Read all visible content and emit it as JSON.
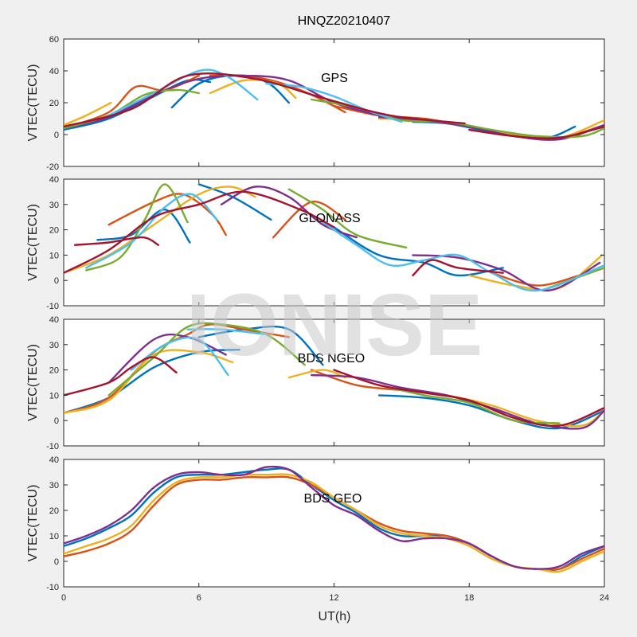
{
  "figure_title": "HNQZ20210407",
  "watermark": "IONISE",
  "colors": [
    "#0072BD",
    "#D95319",
    "#EDB120",
    "#7E2F8E",
    "#77AC30",
    "#4DBEEE",
    "#A2142F"
  ],
  "chart_data": [
    {
      "type": "line",
      "title": "HNQZ20210407",
      "annotation": "GPS",
      "xlabel": "",
      "ylabel": "VTEC(TECU)",
      "xlim": [
        0,
        24
      ],
      "ylim": [
        -20,
        60
      ],
      "xticks": [
        0,
        6,
        12,
        18,
        24
      ],
      "yticks": [
        -20,
        0,
        20,
        40,
        60
      ],
      "series": [
        {
          "color": "#0072BD",
          "x": [
            0,
            2,
            4,
            5.5,
            6.5
          ],
          "y": [
            3,
            10,
            24,
            34,
            33
          ]
        },
        {
          "color": "#0072BD",
          "x": [
            4.8,
            6,
            7.5,
            9,
            10
          ],
          "y": [
            17,
            32,
            37,
            33,
            20
          ]
        },
        {
          "color": "#0072BD",
          "x": [
            15.5,
            17,
            18.5,
            20,
            21.5,
            22.7
          ],
          "y": [
            8,
            7,
            3,
            -1,
            -2,
            5
          ]
        },
        {
          "color": "#D95319",
          "x": [
            0,
            2,
            3.2,
            4.5,
            6
          ],
          "y": [
            4,
            14,
            30,
            28,
            37
          ]
        },
        {
          "color": "#D95319",
          "x": [
            6.5,
            8,
            9.5,
            11,
            12.5
          ],
          "y": [
            37,
            37,
            33,
            25,
            14
          ]
        },
        {
          "color": "#D95319",
          "x": [
            12,
            14,
            16,
            18,
            20,
            22,
            24
          ],
          "y": [
            18,
            12,
            10,
            5,
            0,
            -2,
            6
          ]
        },
        {
          "color": "#EDB120",
          "x": [
            0,
            1,
            2.1
          ],
          "y": [
            6,
            12,
            20
          ]
        },
        {
          "color": "#EDB120",
          "x": [
            6.5,
            8,
            9.5,
            10.3
          ],
          "y": [
            26,
            34,
            32,
            23
          ]
        },
        {
          "color": "#EDB120",
          "x": [
            14,
            16,
            18,
            20,
            22,
            24
          ],
          "y": [
            10,
            9,
            5,
            0,
            -2,
            9
          ]
        },
        {
          "color": "#7E2F8E",
          "x": [
            0,
            2,
            4,
            6,
            8,
            10,
            12,
            14
          ],
          "y": [
            4,
            11,
            25,
            35,
            37,
            34,
            20,
            12
          ]
        },
        {
          "color": "#7E2F8E",
          "x": [
            14,
            16,
            18,
            20,
            22,
            24
          ],
          "y": [
            11,
            9,
            5,
            -1,
            -3,
            6
          ]
        },
        {
          "color": "#77AC30",
          "x": [
            0,
            2,
            3.6,
            5,
            6
          ],
          "y": [
            4,
            12,
            25,
            28,
            26
          ]
        },
        {
          "color": "#77AC30",
          "x": [
            11,
            13,
            15,
            17,
            19,
            21,
            23,
            24
          ],
          "y": [
            22,
            17,
            9,
            8,
            3,
            -1,
            -1,
            4
          ]
        },
        {
          "color": "#4DBEEE",
          "x": [
            2,
            4,
            6,
            7.2,
            8.6
          ],
          "y": [
            12,
            26,
            40,
            37,
            22
          ]
        },
        {
          "color": "#4DBEEE",
          "x": [
            9,
            10.5,
            12,
            13.5,
            15
          ],
          "y": [
            32,
            30,
            24,
            15,
            8
          ]
        },
        {
          "color": "#A2142F",
          "x": [
            0,
            3,
            5.5,
            8.5,
            11.5,
            14.5,
            17.8
          ],
          "y": [
            5,
            16,
            37,
            35,
            23,
            12,
            7
          ]
        },
        {
          "color": "#A2142F",
          "x": [
            18,
            20,
            22,
            24
          ],
          "y": [
            3,
            -1,
            -2,
            5
          ]
        }
      ]
    },
    {
      "type": "line",
      "annotation": "GLONASS",
      "xlabel": "",
      "ylabel": "VTEC(TECU)",
      "xlim": [
        0,
        24
      ],
      "ylim": [
        -10,
        40
      ],
      "xticks": [
        0,
        6,
        12,
        18,
        24
      ],
      "yticks": [
        -10,
        0,
        10,
        20,
        30,
        40
      ],
      "series": [
        {
          "color": "#0072BD",
          "x": [
            1.5,
            3,
            4.5,
            5.6
          ],
          "y": [
            16,
            18,
            28,
            15
          ]
        },
        {
          "color": "#0072BD",
          "x": [
            6,
            7.5,
            9.2
          ],
          "y": [
            38,
            33,
            24
          ]
        },
        {
          "color": "#0072BD",
          "x": [
            12,
            14,
            16,
            17.5,
            19.5
          ],
          "y": [
            21,
            10,
            7,
            2,
            5
          ]
        },
        {
          "color": "#D95319",
          "x": [
            2,
            4,
            5.3,
            6.6,
            7.2
          ],
          "y": [
            22,
            31,
            34,
            26,
            18
          ]
        },
        {
          "color": "#D95319",
          "x": [
            9.3,
            11,
            12.5
          ],
          "y": [
            17,
            31,
            24
          ]
        },
        {
          "color": "#D95319",
          "x": [
            19,
            21,
            22.9
          ],
          "y": [
            3,
            -2,
            2
          ]
        },
        {
          "color": "#EDB120",
          "x": [
            0,
            2,
            4,
            6,
            7.4,
            8.5
          ],
          "y": [
            3,
            10,
            22,
            34,
            37,
            33
          ]
        },
        {
          "color": "#EDB120",
          "x": [
            18,
            20,
            22,
            23.9
          ],
          "y": [
            2,
            -2,
            -3,
            10
          ]
        },
        {
          "color": "#7E2F8E",
          "x": [
            7,
            8.5,
            10,
            11.5,
            13
          ],
          "y": [
            30,
            37,
            33,
            22,
            17
          ]
        },
        {
          "color": "#7E2F8E",
          "x": [
            15.5,
            17.5,
            19.5,
            21.5,
            23.8
          ],
          "y": [
            10,
            9,
            4,
            -4,
            7
          ]
        },
        {
          "color": "#77AC30",
          "x": [
            1,
            2.5,
            3.6,
            4.5,
            5.5
          ],
          "y": [
            4,
            9,
            24,
            38,
            23
          ]
        },
        {
          "color": "#77AC30",
          "x": [
            10,
            11.5,
            13,
            15.2
          ],
          "y": [
            36,
            28,
            18,
            13
          ]
        },
        {
          "color": "#77AC30",
          "x": [
            21.5,
            24
          ],
          "y": [
            -3,
            5
          ]
        },
        {
          "color": "#4DBEEE",
          "x": [
            1,
            3,
            4.5,
            5.7,
            6.8
          ],
          "y": [
            5,
            15,
            29,
            34,
            24
          ]
        },
        {
          "color": "#4DBEEE",
          "x": [
            11.5,
            13,
            14.5,
            16,
            17.5,
            19,
            21,
            24
          ],
          "y": [
            23,
            14,
            6,
            8,
            10,
            3,
            -4,
            6
          ]
        },
        {
          "color": "#A2142F",
          "x": [
            0.5,
            2,
            3.5,
            4.2
          ],
          "y": [
            14,
            15,
            17,
            14
          ]
        },
        {
          "color": "#A2142F",
          "x": [
            0,
            2,
            4,
            6,
            8,
            10.5,
            12
          ],
          "y": [
            3,
            12,
            25,
            30,
            35,
            28,
            21
          ]
        },
        {
          "color": "#A2142F",
          "x": [
            15.5,
            16.3,
            17.5,
            19.5
          ],
          "y": [
            2,
            8,
            5,
            3
          ]
        }
      ]
    },
    {
      "type": "line",
      "annotation": "BDS NGEO",
      "xlabel": "",
      "ylabel": "VTEC(TECU)",
      "xlim": [
        0,
        24
      ],
      "ylim": [
        -10,
        40
      ],
      "xticks": [
        0,
        6,
        12,
        18,
        24
      ],
      "yticks": [
        -10,
        0,
        10,
        20,
        30,
        40
      ],
      "series": [
        {
          "color": "#0072BD",
          "x": [
            0,
            2,
            4,
            6,
            7.8
          ],
          "y": [
            3,
            9,
            21,
            27,
            28
          ]
        },
        {
          "color": "#0072BD",
          "x": [
            6,
            8,
            10,
            11.5
          ],
          "y": [
            33,
            36,
            36,
            22
          ]
        },
        {
          "color": "#0072BD",
          "x": [
            14,
            16,
            18,
            20,
            22,
            24
          ],
          "y": [
            10,
            9,
            6,
            0,
            -3,
            4
          ]
        },
        {
          "color": "#D95319",
          "x": [
            0,
            2,
            4,
            5.5,
            6.5,
            8,
            10
          ],
          "y": [
            3,
            9,
            27,
            34,
            38,
            36,
            33
          ]
        },
        {
          "color": "#D95319",
          "x": [
            11,
            13,
            15,
            17
          ],
          "y": [
            20,
            14,
            12,
            10
          ]
        },
        {
          "color": "#EDB120",
          "x": [
            0,
            2,
            4,
            6,
            7.5
          ],
          "y": [
            3,
            8,
            26,
            27,
            23
          ]
        },
        {
          "color": "#EDB120",
          "x": [
            10,
            11.5,
            12.5
          ],
          "y": [
            17,
            20,
            17
          ]
        },
        {
          "color": "#EDB120",
          "x": [
            15,
            17,
            19,
            21,
            23,
            24
          ],
          "y": [
            12,
            10,
            6,
            0,
            -2,
            4
          ]
        },
        {
          "color": "#7E2F8E",
          "x": [
            2,
            4,
            5.5,
            7.2
          ],
          "y": [
            15,
            32,
            33,
            26
          ]
        },
        {
          "color": "#7E2F8E",
          "x": [
            11,
            13,
            15,
            17,
            19,
            21,
            23,
            24
          ],
          "y": [
            18,
            17,
            13,
            10,
            5,
            -1,
            -3,
            4
          ]
        },
        {
          "color": "#77AC30",
          "x": [
            2,
            4,
            5.5,
            7,
            9,
            10.7
          ],
          "y": [
            10,
            25,
            37,
            38,
            34,
            22
          ]
        },
        {
          "color": "#77AC30",
          "x": [
            14,
            16,
            18,
            20,
            22
          ],
          "y": [
            14,
            10,
            7,
            0,
            -1
          ]
        },
        {
          "color": "#4DBEEE",
          "x": [
            3,
            4.5,
            6,
            7.3
          ],
          "y": [
            20,
            30,
            32,
            18
          ]
        },
        {
          "color": "#4DBEEE",
          "x": [
            5.5,
            7,
            9
          ],
          "y": [
            36,
            36,
            34
          ]
        },
        {
          "color": "#A2142F",
          "x": [
            0,
            2,
            3,
            4,
            5
          ],
          "y": [
            10,
            15,
            21,
            25,
            19
          ]
        },
        {
          "color": "#A2142F",
          "x": [
            12,
            14,
            16,
            18,
            20,
            22,
            24
          ],
          "y": [
            20,
            14,
            11,
            8,
            1,
            -2,
            5
          ]
        }
      ]
    },
    {
      "type": "line",
      "annotation": "BDS GEO",
      "xlabel": "UT(h)",
      "ylabel": "VTEC(TECU)",
      "xlim": [
        0,
        24
      ],
      "ylim": [
        -10,
        40
      ],
      "xticks": [
        0,
        6,
        12,
        18,
        24
      ],
      "yticks": [
        -10,
        0,
        10,
        20,
        30,
        40
      ],
      "series": [
        {
          "color": "#0072BD",
          "x": [
            0,
            1,
            2,
            3,
            4,
            5,
            6,
            7,
            8,
            9,
            10,
            11,
            12,
            13,
            14,
            15,
            16,
            17,
            18,
            19,
            20,
            21,
            22,
            23,
            24
          ],
          "y": [
            6,
            9,
            13,
            18,
            27,
            33,
            34,
            34,
            35,
            36,
            36,
            30,
            24,
            19,
            13,
            10,
            10,
            10,
            7,
            2,
            -2,
            -3,
            -3,
            2,
            6
          ]
        },
        {
          "color": "#D95319",
          "x": [
            0,
            1,
            2,
            3,
            4,
            5,
            6,
            7,
            8,
            9,
            10,
            11,
            12,
            13,
            14,
            15,
            16,
            17,
            18,
            19,
            20,
            21,
            22,
            23,
            24
          ],
          "y": [
            2,
            4,
            7,
            12,
            22,
            30,
            32,
            32,
            33,
            33,
            33,
            30,
            25,
            20,
            15,
            12,
            11,
            10,
            7,
            2,
            -2,
            -3,
            -3,
            1,
            5
          ]
        },
        {
          "color": "#EDB120",
          "x": [
            0,
            1,
            2,
            3,
            4,
            5,
            6,
            7,
            8,
            9,
            10,
            11,
            12,
            13,
            14,
            15,
            16,
            17,
            18,
            19,
            20,
            21,
            22,
            23,
            24
          ],
          "y": [
            3,
            6,
            9,
            14,
            24,
            31,
            33,
            33,
            34,
            34,
            34,
            31,
            25,
            20,
            14,
            11,
            10,
            9,
            6,
            1,
            -2,
            -3,
            -4,
            0,
            4
          ]
        },
        {
          "color": "#7E2F8E",
          "x": [
            0,
            1,
            2,
            3,
            4,
            5,
            6,
            7,
            8,
            9,
            10,
            11,
            12,
            13,
            14,
            15,
            16,
            17,
            18,
            19,
            20,
            21,
            22,
            23,
            24
          ],
          "y": [
            7,
            10,
            14,
            20,
            29,
            34,
            35,
            34,
            34,
            37,
            36,
            29,
            22,
            18,
            12,
            8,
            9,
            9,
            7,
            2,
            -2,
            -3,
            -2,
            3,
            6
          ]
        }
      ]
    }
  ]
}
